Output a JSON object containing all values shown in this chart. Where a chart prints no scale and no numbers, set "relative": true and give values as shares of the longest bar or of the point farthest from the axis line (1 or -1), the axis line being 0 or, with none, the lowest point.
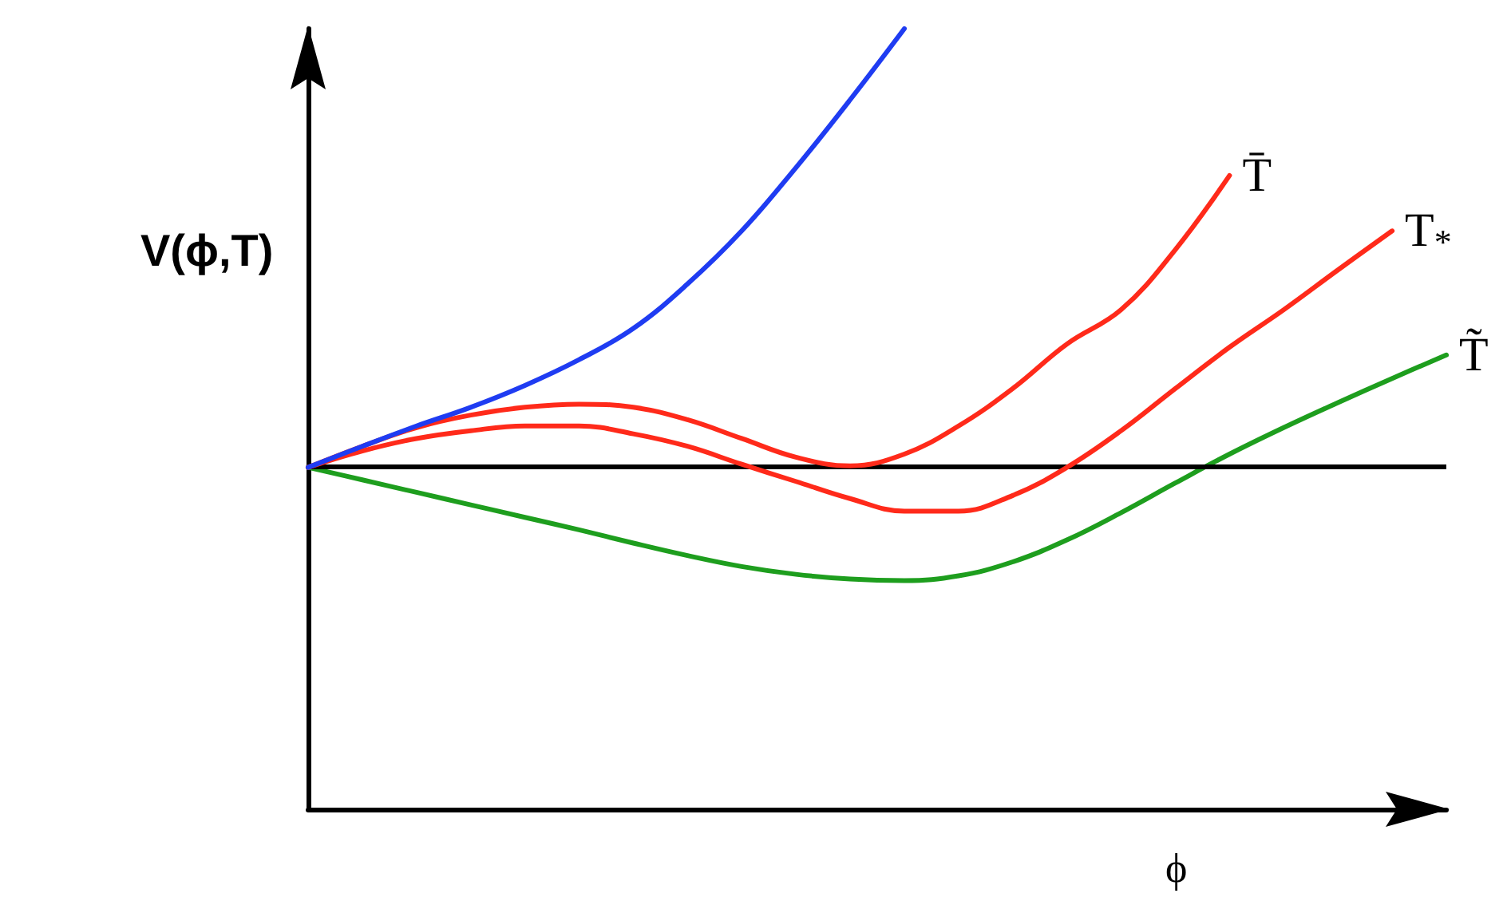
{
  "chart_data": {
    "type": "line",
    "relative": true,
    "xlabel": "ϕ",
    "ylabel": "V(ϕ,T)",
    "grid": false,
    "legend": false,
    "marker": "none",
    "line_style": "solid",
    "categories": [
      null,
      null,
      null,
      null,
      null,
      null,
      null,
      null,
      null,
      null,
      null,
      null,
      null,
      null,
      null,
      null,
      null,
      null,
      null,
      null,
      null,
      null
    ],
    "series": [
      {
        "color": "#1f3cf2",
        "values": [
          0.438,
          0.465,
          0.491,
          0.515,
          0.543,
          0.576,
          0.616,
          0.673,
          0.741,
          0.822,
          0.909,
          1.0,
          null,
          null,
          null,
          null,
          null,
          null,
          null,
          null,
          null,
          null
        ]
      },
      {
        "name": "T̄",
        "color": "#ff2a1a",
        "values": [
          0.438,
          0.465,
          0.489,
          0.505,
          0.515,
          0.519,
          0.515,
          0.499,
          0.475,
          0.451,
          0.44,
          0.455,
          0.491,
          0.539,
          0.596,
          0.64,
          0.717,
          0.812,
          null,
          null,
          null,
          null
        ]
      },
      {
        "name": "T$_{*}$",
        "color": "#ff2a1a",
        "values": [
          0.438,
          0.459,
          0.475,
          0.485,
          0.491,
          0.491,
          0.481,
          0.465,
          0.442,
          0.42,
          0.398,
          0.382,
          0.382,
          0.402,
          0.438,
          0.485,
          0.539,
          0.592,
          0.64,
          0.691,
          0.741,
          null
        ]
      },
      {
        "name": "T̃",
        "color": "#1e9e1e",
        "values": [
          0.438,
          0.422,
          0.406,
          0.39,
          0.374,
          0.358,
          0.341,
          0.325,
          0.311,
          0.301,
          0.295,
          0.293,
          0.299,
          0.317,
          0.345,
          0.38,
          0.418,
          0.455,
          0.489,
          0.521,
          0.552,
          0.582
        ]
      }
    ],
    "ref_lines": [
      {
        "axis": "y",
        "value": 0.438,
        "color": "#000000",
        "line_style": "solid"
      }
    ]
  }
}
